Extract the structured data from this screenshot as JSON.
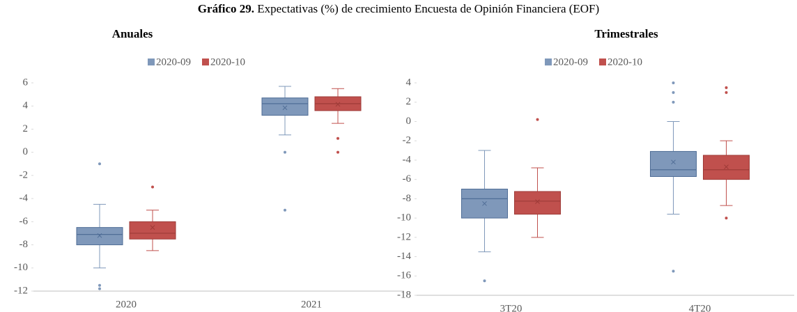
{
  "header": {
    "label": "Gráfico 29.",
    "title": "Expectativas (%) de crecimiento Encuesta de Opinión Financiera (EOF)"
  },
  "chart_data": [
    {
      "type": "box",
      "title": "Anuales",
      "categories": [
        "2020",
        "2021"
      ],
      "ylim": [
        -12,
        6
      ],
      "yticks": [
        -12,
        -10,
        -8,
        -6,
        -4,
        -2,
        0,
        2,
        4,
        6
      ],
      "series": [
        {
          "name": "2020-09",
          "color": "#7f98ba",
          "boxes": [
            {
              "min": -10,
              "q1": -8,
              "median": -7.1,
              "q3": -6.5,
              "max": -4.5,
              "mean": -7.2,
              "outliers": [
                -1,
                -11.5,
                -11.8
              ]
            },
            {
              "min": 1.5,
              "q1": 3.2,
              "median": 4.2,
              "q3": 4.7,
              "max": 5.7,
              "mean": 3.85,
              "outliers": [
                0,
                -5
              ]
            }
          ]
        },
        {
          "name": "2020-10",
          "color": "#c0504d",
          "boxes": [
            {
              "min": -8.5,
              "q1": -7.5,
              "median": -7,
              "q3": -6,
              "max": -5,
              "mean": -6.5,
              "outliers": [
                -3
              ]
            },
            {
              "min": 2.5,
              "q1": 3.6,
              "median": 4.2,
              "q3": 4.8,
              "max": 5.5,
              "mean": 4.15,
              "outliers": [
                1.2,
                0
              ]
            }
          ]
        }
      ]
    },
    {
      "type": "box",
      "title": "Trimestrales",
      "categories": [
        "3T20",
        "4T20"
      ],
      "ylim": [
        -18,
        4
      ],
      "yticks": [
        -18,
        -16,
        -14,
        -12,
        -10,
        -8,
        -6,
        -4,
        -2,
        0,
        2,
        4
      ],
      "series": [
        {
          "name": "2020-09",
          "color": "#7f98ba",
          "boxes": [
            {
              "min": -13.5,
              "q1": -10,
              "median": -8,
              "q3": -7,
              "max": -3,
              "mean": -8.5,
              "outliers": [
                -16.5
              ]
            },
            {
              "min": -9.6,
              "q1": -5.7,
              "median": -5,
              "q3": -3.1,
              "max": 0,
              "mean": -4.2,
              "outliers": [
                4,
                3,
                2,
                -15.5
              ]
            }
          ]
        },
        {
          "name": "2020-10",
          "color": "#c0504d",
          "boxes": [
            {
              "min": -12,
              "q1": -9.6,
              "median": -8.25,
              "q3": -7.25,
              "max": -4.8,
              "mean": -8.3,
              "outliers": [
                0.2
              ]
            },
            {
              "min": -8.7,
              "q1": -6,
              "median": -5,
              "q3": -3.5,
              "max": -2,
              "mean": -4.7,
              "outliers": [
                3.5,
                3,
                -10
              ]
            }
          ]
        }
      ]
    }
  ]
}
